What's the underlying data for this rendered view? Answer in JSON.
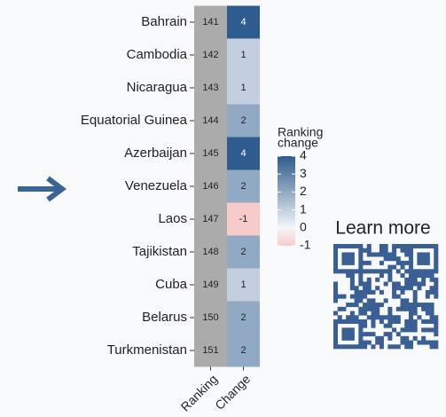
{
  "chart_data": {
    "type": "heatmap",
    "categories": [
      "Bahrain",
      "Cambodia",
      "Nicaragua",
      "Equatorial Guinea",
      "Azerbaijan",
      "Venezuela",
      "Laos",
      "Tajikistan",
      "Cuba",
      "Belarus",
      "Turkmenistan"
    ],
    "columns": [
      "Ranking",
      "Change"
    ],
    "rankings": [
      141,
      142,
      143,
      144,
      145,
      146,
      147,
      148,
      149,
      150,
      151
    ],
    "values": [
      4,
      1,
      1,
      2,
      4,
      2,
      -1,
      2,
      1,
      2,
      2
    ],
    "ranking_color": "#ababab",
    "colorscale": {
      "low": "#f8cbcb",
      "mid": "#f4f5f9",
      "high": "#2f5c8e"
    },
    "clim": [
      -1,
      4
    ],
    "legend_title": [
      "Ranking",
      "change"
    ],
    "legend_ticks": [
      4,
      3,
      2,
      1,
      0,
      -1
    ],
    "annotation": "Learn more"
  }
}
